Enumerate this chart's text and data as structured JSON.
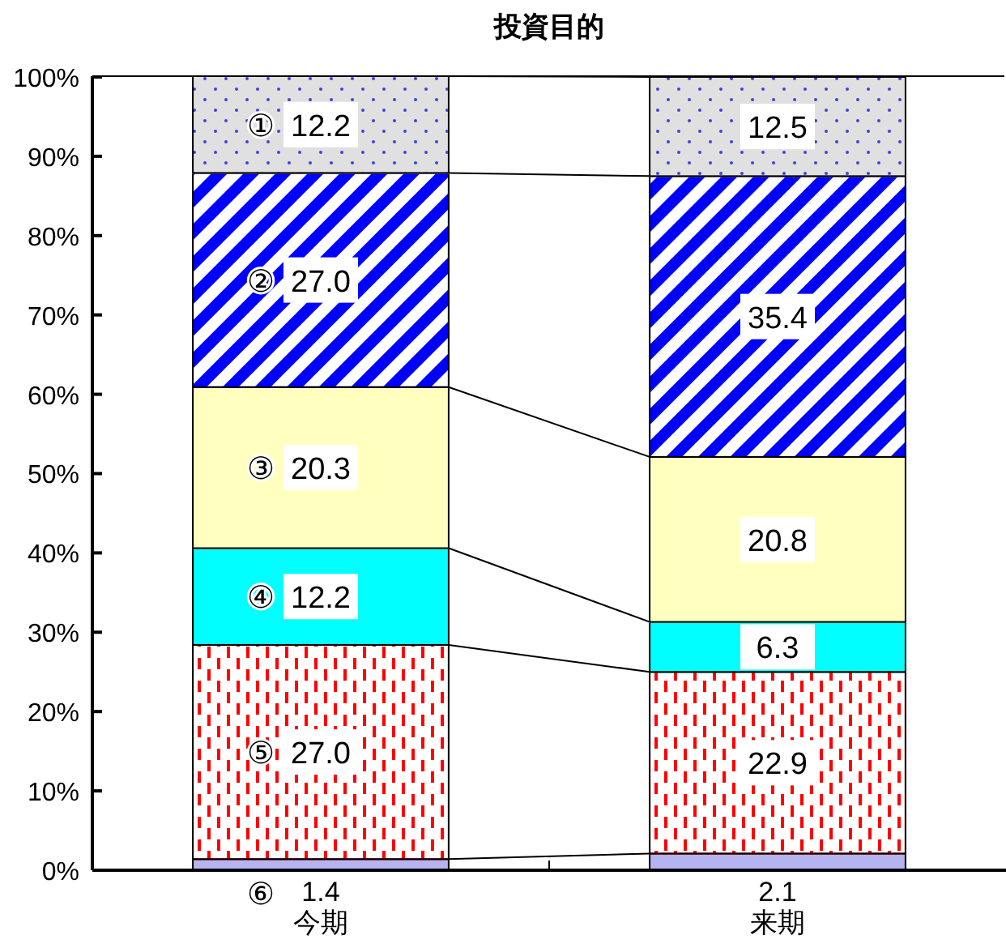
{
  "chart_data": {
    "type": "bar",
    "title": "投資目的",
    "stacked": true,
    "categories": [
      "今期",
      "来期"
    ],
    "series": [
      {
        "name": "⑥",
        "color": "#b4b4f0",
        "values": [
          1.4,
          2.1
        ],
        "value_labels": [
          "1.4",
          "2.1"
        ]
      },
      {
        "name": "⑤",
        "color": "#ff0000",
        "values": [
          27.0,
          22.9
        ],
        "value_labels": [
          "27.0",
          "22.9"
        ]
      },
      {
        "name": "④",
        "color": "#00ffff",
        "values": [
          12.2,
          6.3
        ],
        "value_labels": [
          "12.2",
          "6.3"
        ]
      },
      {
        "name": "③",
        "color": "#ffffc0",
        "values": [
          20.3,
          20.8
        ],
        "value_labels": [
          "20.3",
          "20.8"
        ]
      },
      {
        "name": "②",
        "color": "#0000ff",
        "values": [
          27.0,
          35.4
        ],
        "value_labels": [
          "27.0",
          "35.4"
        ]
      },
      {
        "name": "①",
        "color": "#e0e0e0",
        "values": [
          12.2,
          12.5
        ],
        "value_labels": [
          "12.2",
          "12.5"
        ]
      }
    ],
    "ylim": [
      0,
      100.1
    ],
    "yticks": [
      {
        "value": 0,
        "label": "0%"
      },
      {
        "value": 10,
        "label": "10%"
      },
      {
        "value": 20,
        "label": "20%"
      },
      {
        "value": 30,
        "label": "30%"
      },
      {
        "value": 40,
        "label": "40%"
      },
      {
        "value": 50,
        "label": "50%"
      },
      {
        "value": 60,
        "label": "60%"
      },
      {
        "value": 70,
        "label": "70%"
      },
      {
        "value": 80,
        "label": "80%"
      },
      {
        "value": 90,
        "label": "90%"
      },
      {
        "value": 100,
        "label": "100%"
      }
    ],
    "grid": false
  }
}
